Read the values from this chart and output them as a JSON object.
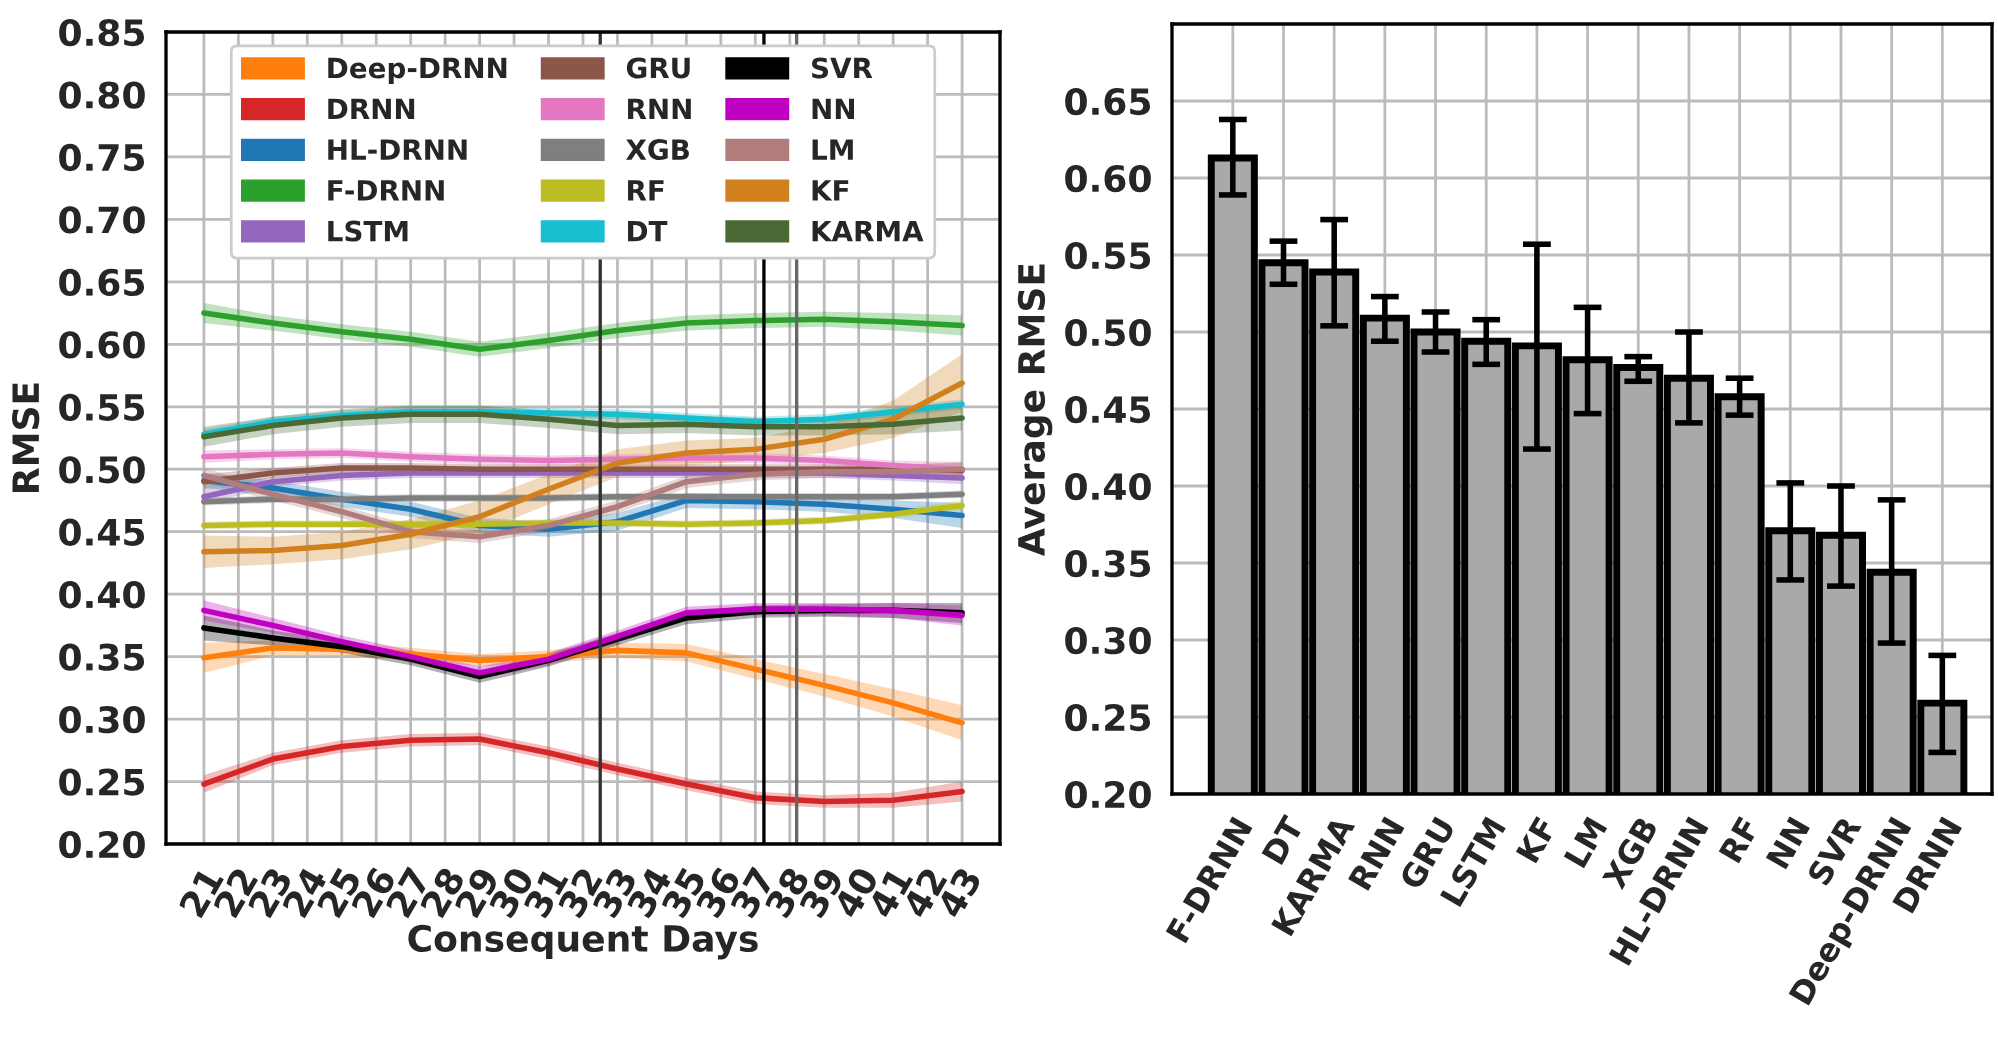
{
  "chart_data": [
    {
      "type": "line",
      "xlabel": "Consequent Days",
      "ylabel": "RMSE",
      "x": [
        21,
        23,
        25,
        27,
        29,
        31,
        33,
        35,
        37,
        39,
        41,
        43
      ],
      "xlim": [
        19.9,
        44.1
      ],
      "xticks": [
        21,
        22,
        23,
        24,
        25,
        26,
        27,
        28,
        29,
        30,
        31,
        32,
        33,
        34,
        35,
        36,
        37,
        38,
        39,
        40,
        41,
        42,
        43
      ],
      "ylim": [
        0.2,
        0.85
      ],
      "yticks": [
        {
          "value": 0.2,
          "label": "0.20"
        },
        0.25,
        {
          "value": 0.3,
          "label": "0.30"
        },
        0.35,
        {
          "value": 0.4,
          "label": "0.40"
        },
        0.45,
        {
          "value": 0.5,
          "label": "0.50"
        },
        0.55,
        {
          "value": 0.6,
          "label": "0.60"
        },
        0.65,
        {
          "value": 0.7,
          "label": "0.70"
        },
        0.75,
        {
          "value": 0.8,
          "label": "0.80"
        },
        0.85
      ],
      "grid": true,
      "legend": "top",
      "ref_lines": [
        {
          "axis": "x",
          "value": 32.5,
          "color": "#333333"
        },
        {
          "axis": "x",
          "value": 37.25,
          "color": "#000000"
        },
        {
          "axis": "x",
          "value": 38.2,
          "color": "#666666"
        }
      ],
      "series": [
        {
          "name": "Deep-DRNN",
          "color": "#ff7f0e",
          "values": [
            0.349,
            0.357,
            0.356,
            0.352,
            0.347,
            0.35,
            0.355,
            0.353,
            0.34,
            0.327,
            0.313,
            0.297
          ],
          "lower": [
            0.337,
            0.351,
            0.351,
            0.347,
            0.342,
            0.345,
            0.349,
            0.346,
            0.332,
            0.318,
            0.302,
            0.283
          ],
          "upper": [
            0.361,
            0.363,
            0.361,
            0.357,
            0.352,
            0.355,
            0.361,
            0.36,
            0.348,
            0.336,
            0.324,
            0.311
          ]
        },
        {
          "name": "DRNN",
          "color": "#d62728",
          "values": [
            0.248,
            0.268,
            0.278,
            0.283,
            0.284,
            0.273,
            0.26,
            0.248,
            0.237,
            0.234,
            0.235,
            0.242
          ],
          "lower": [
            0.241,
            0.263,
            0.273,
            0.278,
            0.279,
            0.268,
            0.255,
            0.243,
            0.232,
            0.229,
            0.229,
            0.234
          ],
          "upper": [
            0.255,
            0.273,
            0.283,
            0.288,
            0.289,
            0.278,
            0.265,
            0.253,
            0.242,
            0.239,
            0.241,
            0.25
          ]
        },
        {
          "name": "HL-DRNN",
          "color": "#1f77b4",
          "values": [
            0.491,
            0.485,
            0.476,
            0.468,
            0.455,
            0.452,
            0.458,
            0.475,
            0.474,
            0.472,
            0.468,
            0.463
          ],
          "lower": [
            0.485,
            0.479,
            0.47,
            0.462,
            0.449,
            0.446,
            0.451,
            0.469,
            0.468,
            0.466,
            0.461,
            0.453
          ],
          "upper": [
            0.497,
            0.491,
            0.482,
            0.474,
            0.461,
            0.458,
            0.465,
            0.481,
            0.48,
            0.478,
            0.475,
            0.473
          ]
        },
        {
          "name": "F-DRNN",
          "color": "#2ca02c",
          "values": [
            0.625,
            0.617,
            0.61,
            0.604,
            0.596,
            0.603,
            0.611,
            0.617,
            0.619,
            0.62,
            0.618,
            0.615
          ],
          "lower": [
            0.617,
            0.611,
            0.604,
            0.598,
            0.59,
            0.597,
            0.605,
            0.611,
            0.613,
            0.614,
            0.611,
            0.607
          ],
          "upper": [
            0.633,
            0.623,
            0.616,
            0.61,
            0.602,
            0.609,
            0.617,
            0.623,
            0.625,
            0.626,
            0.625,
            0.623
          ]
        },
        {
          "name": "LSTM",
          "color": "#9467bd",
          "values": [
            0.478,
            0.49,
            0.495,
            0.497,
            0.497,
            0.497,
            0.497,
            0.497,
            0.497,
            0.497,
            0.495,
            0.493
          ],
          "lower": [
            0.472,
            0.486,
            0.491,
            0.493,
            0.493,
            0.493,
            0.493,
            0.493,
            0.493,
            0.493,
            0.491,
            0.488
          ],
          "upper": [
            0.484,
            0.494,
            0.499,
            0.501,
            0.501,
            0.501,
            0.501,
            0.501,
            0.501,
            0.501,
            0.499,
            0.498
          ]
        },
        {
          "name": "GRU",
          "color": "#8c564b",
          "values": [
            0.49,
            0.497,
            0.501,
            0.501,
            0.5,
            0.5,
            0.5,
            0.5,
            0.5,
            0.5,
            0.5,
            0.499
          ],
          "lower": [
            0.484,
            0.493,
            0.497,
            0.497,
            0.496,
            0.496,
            0.496,
            0.496,
            0.496,
            0.496,
            0.496,
            0.493
          ],
          "upper": [
            0.496,
            0.501,
            0.505,
            0.505,
            0.504,
            0.504,
            0.504,
            0.504,
            0.504,
            0.504,
            0.504,
            0.505
          ]
        },
        {
          "name": "RNN",
          "color": "#e377c2",
          "values": [
            0.51,
            0.512,
            0.513,
            0.51,
            0.508,
            0.507,
            0.508,
            0.509,
            0.509,
            0.507,
            0.503,
            0.5
          ],
          "lower": [
            0.505,
            0.508,
            0.509,
            0.506,
            0.504,
            0.503,
            0.504,
            0.505,
            0.505,
            0.503,
            0.499,
            0.494
          ],
          "upper": [
            0.515,
            0.516,
            0.517,
            0.514,
            0.512,
            0.511,
            0.512,
            0.513,
            0.513,
            0.511,
            0.507,
            0.506
          ]
        },
        {
          "name": "XGB",
          "color": "#7f7f7f",
          "values": [
            0.474,
            0.476,
            0.476,
            0.477,
            0.477,
            0.477,
            0.478,
            0.478,
            0.478,
            0.478,
            0.478,
            0.48
          ],
          "lower": [
            0.471,
            0.473,
            0.473,
            0.474,
            0.474,
            0.474,
            0.475,
            0.475,
            0.475,
            0.475,
            0.475,
            0.477
          ],
          "upper": [
            0.477,
            0.479,
            0.479,
            0.48,
            0.48,
            0.48,
            0.481,
            0.481,
            0.481,
            0.481,
            0.481,
            0.483
          ]
        },
        {
          "name": "RF",
          "color": "#bcbd22",
          "values": [
            0.455,
            0.456,
            0.456,
            0.456,
            0.456,
            0.457,
            0.457,
            0.456,
            0.457,
            0.459,
            0.464,
            0.471
          ],
          "lower": [
            0.452,
            0.453,
            0.453,
            0.453,
            0.453,
            0.454,
            0.454,
            0.453,
            0.454,
            0.456,
            0.461,
            0.467
          ],
          "upper": [
            0.458,
            0.459,
            0.459,
            0.459,
            0.459,
            0.46,
            0.46,
            0.459,
            0.46,
            0.462,
            0.467,
            0.475
          ]
        },
        {
          "name": "DT",
          "color": "#17becf",
          "values": [
            0.528,
            0.538,
            0.543,
            0.546,
            0.546,
            0.545,
            0.544,
            0.541,
            0.538,
            0.54,
            0.546,
            0.552
          ],
          "lower": [
            0.524,
            0.534,
            0.539,
            0.542,
            0.542,
            0.541,
            0.54,
            0.537,
            0.534,
            0.536,
            0.542,
            0.548
          ],
          "upper": [
            0.532,
            0.542,
            0.547,
            0.55,
            0.55,
            0.549,
            0.548,
            0.545,
            0.542,
            0.544,
            0.55,
            0.556
          ]
        },
        {
          "name": "SVR",
          "color": "#000000",
          "values": [
            0.373,
            0.365,
            0.358,
            0.348,
            0.334,
            0.347,
            0.364,
            0.381,
            0.386,
            0.387,
            0.387,
            0.385
          ],
          "lower": [
            0.363,
            0.359,
            0.353,
            0.343,
            0.329,
            0.342,
            0.359,
            0.376,
            0.381,
            0.382,
            0.381,
            0.377
          ],
          "upper": [
            0.383,
            0.371,
            0.363,
            0.353,
            0.339,
            0.352,
            0.369,
            0.386,
            0.391,
            0.392,
            0.393,
            0.393
          ]
        },
        {
          "name": "NN",
          "color": "#c000c0",
          "values": [
            0.387,
            0.375,
            0.362,
            0.35,
            0.337,
            0.348,
            0.366,
            0.385,
            0.388,
            0.388,
            0.387,
            0.383
          ],
          "lower": [
            0.379,
            0.369,
            0.357,
            0.345,
            0.332,
            0.343,
            0.361,
            0.38,
            0.383,
            0.383,
            0.381,
            0.375
          ],
          "upper": [
            0.395,
            0.381,
            0.367,
            0.355,
            0.342,
            0.353,
            0.371,
            0.39,
            0.393,
            0.393,
            0.393,
            0.391
          ]
        },
        {
          "name": "LM",
          "color": "#b07c7c",
          "values": [
            0.495,
            0.48,
            0.466,
            0.45,
            0.446,
            0.455,
            0.47,
            0.49,
            0.496,
            0.498,
            0.498,
            0.5
          ],
          "lower": [
            0.489,
            0.475,
            0.461,
            0.445,
            0.441,
            0.45,
            0.465,
            0.485,
            0.491,
            0.493,
            0.493,
            0.494
          ],
          "upper": [
            0.501,
            0.485,
            0.471,
            0.455,
            0.451,
            0.46,
            0.475,
            0.495,
            0.501,
            0.503,
            0.503,
            0.506
          ]
        },
        {
          "name": "KF",
          "color": "#d2801e",
          "values": [
            0.434,
            0.435,
            0.439,
            0.448,
            0.462,
            0.484,
            0.505,
            0.513,
            0.516,
            0.524,
            0.54,
            0.569
          ],
          "lower": [
            0.421,
            0.424,
            0.428,
            0.436,
            0.449,
            0.472,
            0.494,
            0.503,
            0.507,
            0.513,
            0.525,
            0.546
          ],
          "upper": [
            0.447,
            0.446,
            0.45,
            0.46,
            0.475,
            0.496,
            0.516,
            0.523,
            0.525,
            0.535,
            0.555,
            0.592
          ]
        },
        {
          "name": "KARMA",
          "color": "#4a6a35",
          "values": [
            0.526,
            0.535,
            0.541,
            0.544,
            0.544,
            0.54,
            0.535,
            0.536,
            0.534,
            0.534,
            0.536,
            0.541
          ],
          "lower": [
            0.518,
            0.528,
            0.534,
            0.537,
            0.537,
            0.533,
            0.528,
            0.529,
            0.527,
            0.527,
            0.528,
            0.531
          ],
          "upper": [
            0.534,
            0.542,
            0.548,
            0.551,
            0.551,
            0.547,
            0.542,
            0.543,
            0.541,
            0.541,
            0.544,
            0.551
          ]
        }
      ]
    },
    {
      "type": "bar",
      "ylabel": "Average RMSE",
      "grid": true,
      "categories": [
        "F-DRNN",
        "DT",
        "KARMA",
        "RNN",
        "GRU",
        "LSTM",
        "KF",
        "LM",
        "XGB",
        "HL-DRNN",
        "RF",
        "NN",
        "SVR",
        "Deep-DRNN",
        "DRNN"
      ],
      "ylim": [
        0.2,
        0.7
      ],
      "yticks": [
        {
          "value": 0.2,
          "label": "0.20"
        },
        0.25,
        {
          "value": 0.3,
          "label": "0.30"
        },
        0.35,
        {
          "value": 0.4,
          "label": "0.40"
        },
        0.45,
        {
          "value": 0.5,
          "label": "0.50"
        },
        0.55,
        {
          "value": 0.6,
          "label": "0.60"
        },
        0.65
      ],
      "color": "#a9a9a9",
      "values": [
        0.613,
        0.545,
        0.539,
        0.509,
        0.5,
        0.494,
        0.491,
        0.482,
        0.477,
        0.47,
        0.458,
        0.371,
        0.368,
        0.344,
        0.259
      ],
      "errors": [
        [
          0.589,
          0.638
        ],
        [
          0.531,
          0.559
        ],
        [
          0.504,
          0.573
        ],
        [
          0.494,
          0.523
        ],
        [
          0.487,
          0.513
        ],
        [
          0.479,
          0.508
        ],
        [
          0.424,
          0.557
        ],
        [
          0.447,
          0.516
        ],
        [
          0.468,
          0.484
        ],
        [
          0.441,
          0.5
        ],
        [
          0.446,
          0.47
        ],
        [
          0.339,
          0.402
        ],
        [
          0.335,
          0.4
        ],
        [
          0.298,
          0.391
        ],
        [
          0.227,
          0.29
        ]
      ]
    }
  ]
}
